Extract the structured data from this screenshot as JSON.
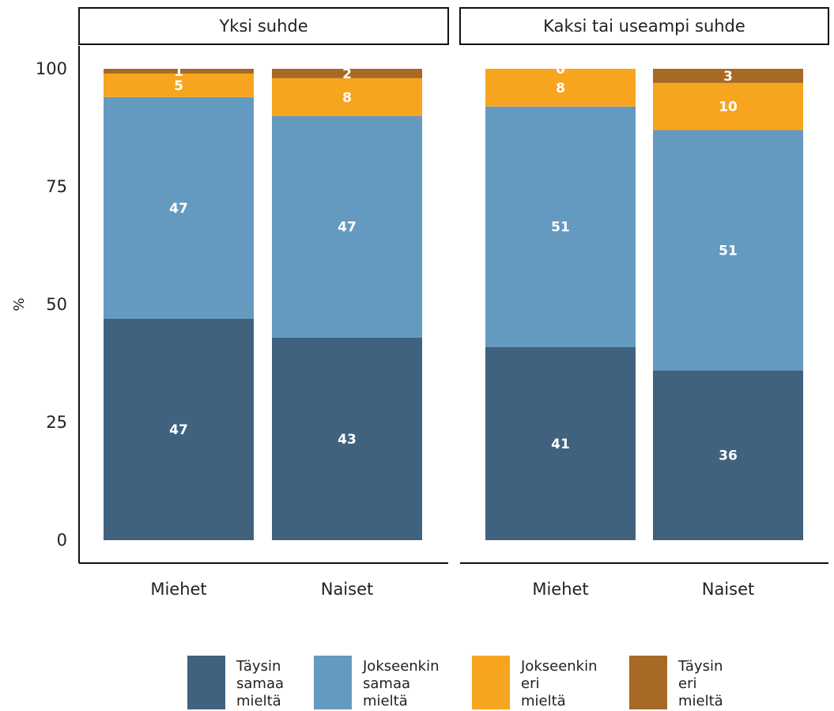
{
  "chart_data": {
    "type": "bar",
    "stacked": true,
    "ylabel": "%",
    "ylim": [
      0,
      100
    ],
    "yticks": [
      0,
      25,
      50,
      75,
      100
    ],
    "grid": false,
    "legend_position": "bottom",
    "facets": [
      {
        "title": "Yksi suhde",
        "categories": [
          "Miehet",
          "Naiset"
        ],
        "series": [
          {
            "name": "Täysin samaa mieltä",
            "values": [
              47,
              43
            ]
          },
          {
            "name": "Jokseenkin samaa mieltä",
            "values": [
              47,
              47
            ]
          },
          {
            "name": "Jokseenkin eri mieltä",
            "values": [
              5,
              8
            ]
          },
          {
            "name": "Täysin eri mieltä",
            "values": [
              1,
              2
            ]
          }
        ]
      },
      {
        "title": "Kaksi tai useampi suhde",
        "categories": [
          "Miehet",
          "Naiset"
        ],
        "series": [
          {
            "name": "Täysin samaa mieltä",
            "values": [
              41,
              36
            ]
          },
          {
            "name": "Jokseenkin samaa mieltä",
            "values": [
              51,
              51
            ]
          },
          {
            "name": "Jokseenkin eri mieltä",
            "values": [
              8,
              10
            ]
          },
          {
            "name": "Täysin eri mieltä",
            "values": [
              0,
              3
            ]
          }
        ]
      }
    ],
    "colors": [
      "#41627f",
      "#659ac0",
      "#f7a51f",
      "#a66a25"
    ],
    "legend": [
      [
        "Täysin",
        "samaa",
        "mieltä"
      ],
      [
        "Jokseenkin",
        "samaa",
        "mieltä"
      ],
      [
        "Jokseenkin",
        "eri",
        "mieltä"
      ],
      [
        "Täysin",
        "eri",
        "mieltä"
      ]
    ]
  }
}
